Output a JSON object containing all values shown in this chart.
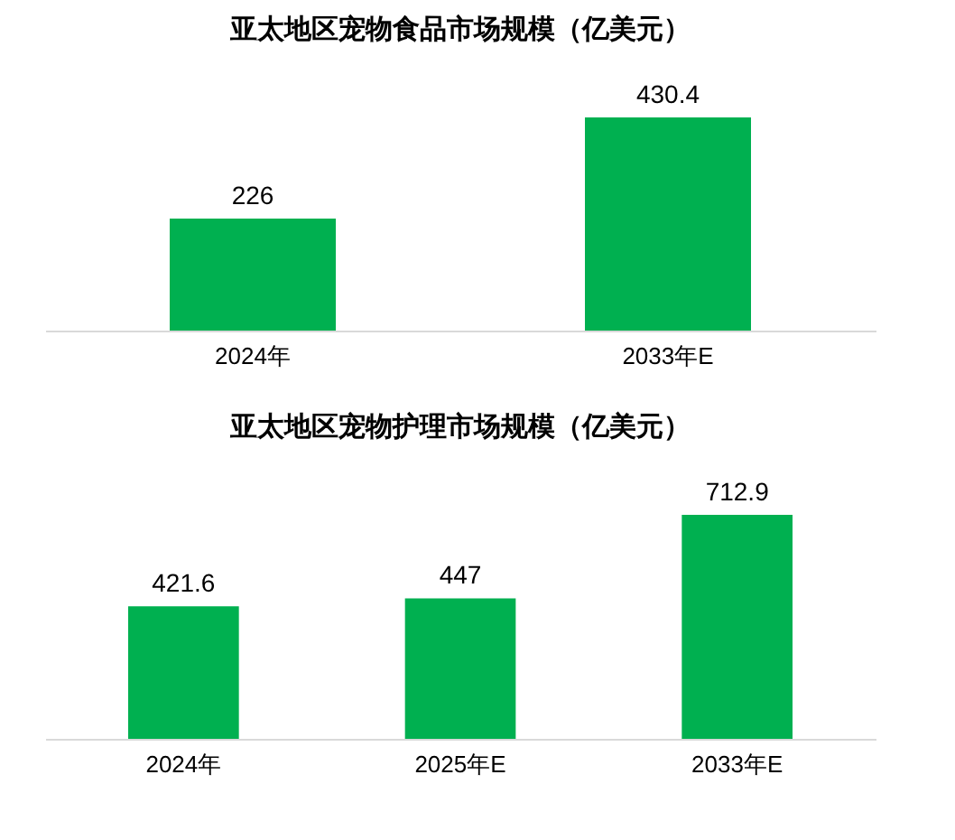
{
  "chart_data": [
    {
      "type": "bar",
      "title": "亚太地区宠物食品市场规模（亿美元）",
      "categories": [
        "2024年",
        "2033年E"
      ],
      "series": [
        {
          "color": "#00b050",
          "values": [
            226,
            430.4
          ]
        }
      ],
      "data_labels": true,
      "relative": false
    },
    {
      "type": "bar",
      "title": "亚太地区宠物护理市场规模（亿美元）",
      "categories": [
        "2024年",
        "2025年E",
        "2033年E"
      ],
      "series": [
        {
          "color": "#00b050",
          "values": [
            421.6,
            447,
            712.9
          ]
        }
      ],
      "data_labels": true,
      "relative": false
    }
  ]
}
